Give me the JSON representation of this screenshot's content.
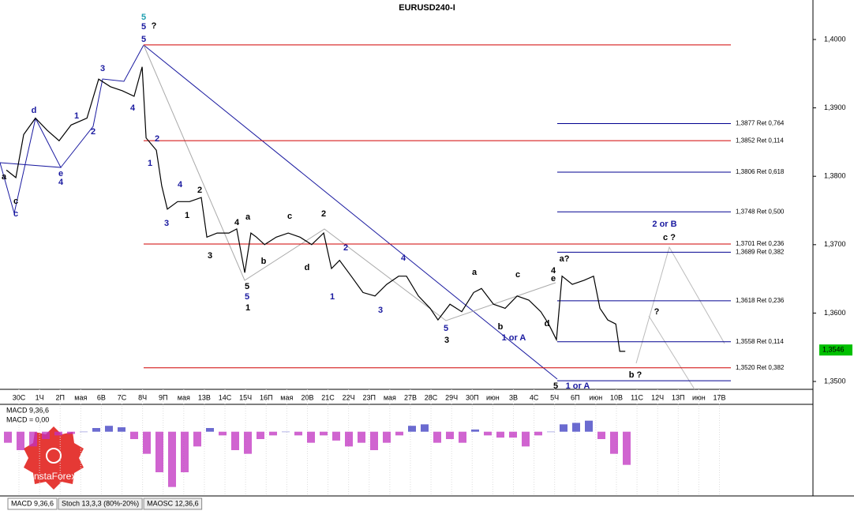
{
  "chart_data": {
    "type": "line",
    "title": "EURUSD240-I",
    "categories": [
      "30C",
      "1Ч",
      "2П",
      "мая",
      "6В",
      "7С",
      "8Ч",
      "9П",
      "мая",
      "13В",
      "14С",
      "15Ч",
      "16П",
      "мая",
      "20В",
      "21С",
      "22Ч",
      "23П",
      "мая",
      "27В",
      "28С",
      "29Ч",
      "30П",
      "июн",
      "3В",
      "4С",
      "5Ч",
      "6П",
      "июн",
      "10В",
      "11С",
      "12Ч",
      "13П",
      "июн",
      "17В"
    ],
    "x": [
      -0.61,
      -0.15,
      0.23,
      0.8,
      1.38,
      1.95,
      2.53,
      3.3,
      3.87,
      4.44,
      5.02,
      5.59,
      5.98,
      6.17,
      6.67,
      6.93,
      7.2,
      7.7,
      8.28,
      8.85,
      9.12,
      9.62,
      10.19,
      10.57,
      10.96,
      11.26,
      11.53,
      11.92,
      12.49,
      13.07,
      13.64,
      14.21,
      14.79,
      15.17,
      15.56,
      16.13,
      16.7,
      17.28,
      17.85,
      18.43,
      18.81,
      19.39,
      19.96,
      20.34,
      20.92,
      21.49,
      22.07,
      22.45,
      23.03,
      23.6,
      24.18,
      24.75,
      25.33,
      25.71,
      26.09,
      26.36,
      26.86,
      27.43,
      27.89,
      28.2,
      28.58,
      28.97,
      29.16,
      29.43
    ],
    "values": [
      1.3809,
      1.3798,
      1.3861,
      1.3885,
      1.3867,
      1.3852,
      1.3875,
      1.3885,
      1.3942,
      1.3931,
      1.3925,
      1.3917,
      1.396,
      1.3856,
      1.3838,
      1.3786,
      1.3752,
      1.3763,
      1.3763,
      1.3769,
      1.3711,
      1.3717,
      1.3717,
      1.3723,
      1.3659,
      1.3717,
      1.3711,
      1.37,
      1.3711,
      1.3717,
      1.3711,
      1.37,
      1.3717,
      1.3665,
      1.3677,
      1.3654,
      1.363,
      1.3625,
      1.3642,
      1.3654,
      1.3654,
      1.3625,
      1.3607,
      1.359,
      1.3613,
      1.3602,
      1.363,
      1.3636,
      1.3613,
      1.3607,
      1.3625,
      1.3619,
      1.3602,
      1.3584,
      1.3561,
      1.3654,
      1.3642,
      1.3648,
      1.3654,
      1.3607,
      1.359,
      1.3584,
      1.3544,
      1.3544
    ],
    "color": "#000000",
    "xlim": [
      -0.92,
      38.54
    ],
    "ylim": [
      1.34885,
      1.40531
    ],
    "yticks": [
      {
        "value": 1.4,
        "label": "1,4000"
      },
      {
        "value": 1.39,
        "label": "1,3900"
      },
      {
        "value": 1.38,
        "label": "1,3800"
      },
      {
        "value": 1.37,
        "label": "1,3700"
      },
      {
        "value": 1.36,
        "label": "1,3600"
      },
      {
        "value": 1.35,
        "label": "1,3500"
      }
    ],
    "grid": false,
    "last_price": {
      "value": 1.3546,
      "label": "1,3546"
    },
    "levels": [
      {
        "value": 1.3992,
        "color": "#d00000"
      },
      {
        "value": 1.3877,
        "label": "1,3877 Ret 0,764",
        "color": "#000090"
      },
      {
        "value": 1.3852,
        "label": "1,3852 Ret 0,114",
        "color": "#d00000"
      },
      {
        "value": 1.3806,
        "label": "1,3806 Ret 0,618",
        "color": "#000090"
      },
      {
        "value": 1.3748,
        "label": "1,3748 Ret 0,500",
        "color": "#000090"
      },
      {
        "value": 1.3701,
        "label": "1,3701 Ret 0,236",
        "color": "#d00000"
      },
      {
        "value": 1.3689,
        "label": "1,3689 Ret 0,382",
        "color": "#000090"
      },
      {
        "value": 1.3618,
        "label": "1,3618 Ret 0,236",
        "color": "#000090"
      },
      {
        "value": 1.3558,
        "label": "1,3558 Ret 0,114",
        "color": "#000090"
      },
      {
        "value": 1.352,
        "label": "1,3520 Ret 0,382",
        "color": "#d00000"
      },
      {
        "value": 1.3501,
        "color": "#000090"
      }
    ],
    "annotations": [
      {
        "text": "5",
        "color": "#20a0b0"
      },
      {
        "text": "5",
        "color": "#1a1aa0"
      },
      {
        "text": "?",
        "color": "#000000"
      },
      {
        "text": "5",
        "color": "#1a1aa0"
      },
      {
        "text": "3",
        "color": "#1a1aa0"
      },
      {
        "text": "4",
        "color": "#1a1aa0"
      },
      {
        "text": "d",
        "color": "#1a1aa0"
      },
      {
        "text": "1",
        "color": "#1a1aa0"
      },
      {
        "text": "2",
        "color": "#1a1aa0"
      },
      {
        "text": "e",
        "color": "#1a1aa0"
      },
      {
        "text": "4",
        "color": "#1a1aa0"
      },
      {
        "text": "a",
        "color": "#000000"
      },
      {
        "text": "c",
        "color": "#000000"
      },
      {
        "text": "c",
        "color": "#1a1aa0"
      },
      {
        "text": "2",
        "color": "#1a1aa0"
      },
      {
        "text": "1",
        "color": "#1a1aa0"
      },
      {
        "text": "4",
        "color": "#1a1aa0"
      },
      {
        "text": "2",
        "color": "#000000"
      },
      {
        "text": "1",
        "color": "#000000"
      },
      {
        "text": "3",
        "color": "#1a1aa0"
      },
      {
        "text": "3",
        "color": "#000000"
      },
      {
        "text": "4",
        "color": "#000000"
      },
      {
        "text": "a",
        "color": "#000000"
      },
      {
        "text": "c",
        "color": "#000000"
      },
      {
        "text": "2",
        "color": "#000000"
      },
      {
        "text": "b",
        "color": "#000000"
      },
      {
        "text": "d",
        "color": "#000000"
      },
      {
        "text": "5",
        "color": "#000000"
      },
      {
        "text": "5",
        "color": "#1a1aa0"
      },
      {
        "text": "1",
        "color": "#000000"
      },
      {
        "text": "2",
        "color": "#1a1aa0"
      },
      {
        "text": "1",
        "color": "#1a1aa0"
      },
      {
        "text": "4",
        "color": "#1a1aa0"
      },
      {
        "text": "3",
        "color": "#1a1aa0"
      },
      {
        "text": "5",
        "color": "#1a1aa0"
      },
      {
        "text": "3",
        "color": "#000000"
      },
      {
        "text": "a",
        "color": "#000000"
      },
      {
        "text": "c",
        "color": "#000000"
      },
      {
        "text": "b",
        "color": "#000000"
      },
      {
        "text": "1 or A",
        "color": "#1a1aa0"
      },
      {
        "text": "4",
        "color": "#000000"
      },
      {
        "text": "e",
        "color": "#000000"
      },
      {
        "text": "d",
        "color": "#000000"
      },
      {
        "text": "a?",
        "color": "#000000"
      },
      {
        "text": "5",
        "color": "#000000"
      },
      {
        "text": "1 or A",
        "color": "#1a1aa0"
      },
      {
        "text": "2 or B",
        "color": "#1a1aa0"
      },
      {
        "text": "c ?",
        "color": "#000000"
      },
      {
        "text": "?",
        "color": "#000000"
      },
      {
        "text": "b ?",
        "color": "#000000"
      }
    ],
    "macd": {
      "title": "MACD 9,36,6",
      "readout": "MACD = 0,00",
      "ylim": [
        -85,
        35
      ],
      "color_up": "#3a3ac0",
      "color_down": "#c030c0",
      "values": [
        -15,
        -25,
        -20,
        -10,
        -5,
        -3,
        0,
        5,
        8,
        6,
        -10,
        -30,
        -55,
        -75,
        -55,
        -20,
        5,
        -5,
        -25,
        -30,
        -10,
        -5,
        0,
        -5,
        -15,
        -5,
        -12,
        -20,
        -15,
        -25,
        -15,
        -5,
        8,
        10,
        -15,
        -10,
        -15,
        3,
        -5,
        -8,
        -8,
        -20,
        -5,
        0,
        10,
        12,
        15,
        -10,
        -30,
        -45
      ]
    },
    "tabs": [
      "MACD 9,36,6",
      "Stoch 13,3,3 (80%-20%)",
      "MAOSC 12,36,6"
    ],
    "logo": "InstaForex"
  }
}
